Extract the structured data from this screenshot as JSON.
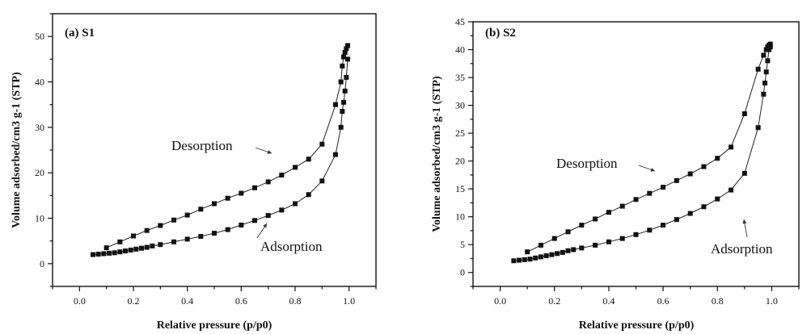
{
  "chart_data": [
    {
      "type": "line",
      "panel_label": "(a) S1",
      "xlabel": "Relative pressure (p/p0)",
      "ylabel": "Volume adsorbed/cm3 g-1 (STP)",
      "xlim": [
        -0.1,
        1.1
      ],
      "ylim": [
        -5,
        55
      ],
      "xticks": [
        0.0,
        0.2,
        0.4,
        0.6,
        0.8,
        1.0
      ],
      "xtick_labels": [
        "0.0",
        "0.2",
        "0.4",
        "0.6",
        "0.8",
        "1.0"
      ],
      "yticks": [
        0,
        10,
        20,
        30,
        40,
        50
      ],
      "ytick_labels": [
        "0",
        "10",
        "20",
        "30",
        "40",
        "50"
      ],
      "grid": false,
      "legend": "none",
      "marker": "square",
      "series": [
        {
          "name": "Adsorption",
          "x": [
            0.05,
            0.07,
            0.09,
            0.11,
            0.13,
            0.15,
            0.17,
            0.19,
            0.21,
            0.23,
            0.25,
            0.27,
            0.3,
            0.35,
            0.4,
            0.45,
            0.5,
            0.55,
            0.6,
            0.65,
            0.7,
            0.75,
            0.8,
            0.85,
            0.9,
            0.95,
            0.97,
            0.975,
            0.98,
            0.985,
            0.99,
            0.995
          ],
          "y": [
            2.0,
            2.1,
            2.2,
            2.3,
            2.4,
            2.6,
            2.8,
            3.0,
            3.2,
            3.4,
            3.6,
            3.9,
            4.2,
            4.8,
            5.4,
            6.0,
            6.7,
            7.5,
            8.5,
            9.5,
            10.6,
            11.8,
            13.2,
            15.2,
            18.2,
            24.0,
            30.0,
            33.5,
            35.5,
            38.0,
            41.0,
            45.0
          ]
        },
        {
          "name": "Desorption",
          "x": [
            0.1,
            0.15,
            0.2,
            0.25,
            0.3,
            0.35,
            0.4,
            0.45,
            0.5,
            0.55,
            0.6,
            0.65,
            0.7,
            0.75,
            0.8,
            0.85,
            0.9,
            0.95,
            0.97,
            0.975,
            0.98,
            0.985,
            0.99,
            0.995
          ],
          "y": [
            3.5,
            4.8,
            6.1,
            7.3,
            8.4,
            9.6,
            10.7,
            12.0,
            13.2,
            14.4,
            15.5,
            16.7,
            18.0,
            19.5,
            21.2,
            23.0,
            26.3,
            35.0,
            40.0,
            43.5,
            45.5,
            46.5,
            47.3,
            48.0
          ]
        }
      ],
      "annotations": [
        {
          "text": "Desorption",
          "target_series": "Desorption"
        },
        {
          "text": "Adsorption",
          "target_series": "Adsorption"
        }
      ]
    },
    {
      "type": "line",
      "panel_label": "(b) S2",
      "xlabel": "Relative pressure (p/p0)",
      "ylabel": "Volume adsorbed/cm3 g-1 (STP)",
      "xlim": [
        -0.1,
        1.1
      ],
      "ylim": [
        -2.5,
        45
      ],
      "xticks": [
        0.0,
        0.2,
        0.4,
        0.6,
        0.8,
        1.0
      ],
      "xtick_labels": [
        "0.0",
        "0.2",
        "0.4",
        "0.6",
        "0.8",
        "1.0"
      ],
      "yticks": [
        0,
        5,
        10,
        15,
        20,
        25,
        30,
        35,
        40,
        45
      ],
      "ytick_labels": [
        "0",
        "5",
        "10",
        "15",
        "20",
        "25",
        "30",
        "35",
        "40",
        "45"
      ],
      "grid": false,
      "legend": "none",
      "marker": "square",
      "series": [
        {
          "name": "Adsorption",
          "x": [
            0.05,
            0.07,
            0.09,
            0.11,
            0.13,
            0.15,
            0.17,
            0.19,
            0.21,
            0.23,
            0.25,
            0.27,
            0.3,
            0.35,
            0.4,
            0.45,
            0.5,
            0.55,
            0.6,
            0.65,
            0.7,
            0.75,
            0.8,
            0.85,
            0.9,
            0.95,
            0.97,
            0.975,
            0.98,
            0.985,
            0.99,
            0.995
          ],
          "y": [
            2.1,
            2.2,
            2.3,
            2.4,
            2.6,
            2.8,
            3.0,
            3.2,
            3.4,
            3.6,
            3.9,
            4.1,
            4.4,
            4.9,
            5.5,
            6.1,
            6.8,
            7.6,
            8.5,
            9.5,
            10.6,
            11.8,
            13.2,
            14.8,
            17.8,
            26.0,
            32.0,
            34.0,
            36.0,
            38.0,
            40.0,
            40.5
          ]
        },
        {
          "name": "Desorption",
          "x": [
            0.1,
            0.15,
            0.2,
            0.25,
            0.3,
            0.35,
            0.4,
            0.45,
            0.5,
            0.55,
            0.6,
            0.65,
            0.7,
            0.75,
            0.8,
            0.85,
            0.9,
            0.95,
            0.97,
            0.98,
            0.985,
            0.99,
            0.995
          ],
          "y": [
            3.7,
            4.9,
            6.1,
            7.3,
            8.5,
            9.6,
            10.8,
            11.9,
            13.1,
            14.2,
            15.3,
            16.5,
            17.7,
            19.0,
            20.5,
            22.5,
            28.5,
            36.5,
            39.0,
            40.0,
            40.5,
            40.8,
            41.0
          ]
        }
      ],
      "annotations": [
        {
          "text": "Desorption",
          "target_series": "Desorption"
        },
        {
          "text": "Adsorption",
          "target_series": "Adsorption"
        }
      ]
    }
  ]
}
